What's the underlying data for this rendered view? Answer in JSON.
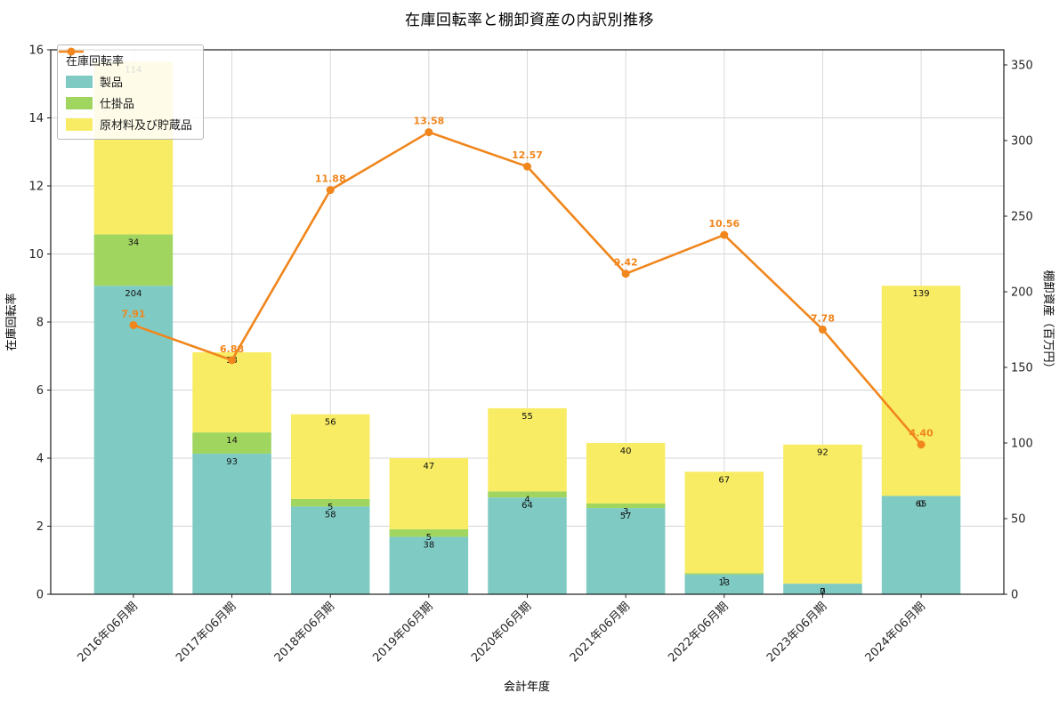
{
  "title": "在庫回転率と棚卸資産の内訳別推移",
  "chart_data": {
    "type": "bar",
    "subtype": "stacked-bar-with-line",
    "title": "在庫回転率と棚卸資産の内訳別推移",
    "xlabel": "会計年度",
    "ylabel_left": "在庫回転率",
    "ylabel_right": "棚卸資産（百万円）",
    "categories": [
      "2016年06月期",
      "2017年06月期",
      "2018年06月期",
      "2019年06月期",
      "2020年06月期",
      "2021年06月期",
      "2022年06月期",
      "2023年06月期",
      "2024年06月期"
    ],
    "series": [
      {
        "name": "製品",
        "color": "#7fcbc4",
        "values": [
          204,
          93,
          58,
          38,
          64,
          57,
          13,
          7,
          65
        ]
      },
      {
        "name": "仕掛品",
        "color": "#a0d55f",
        "values": [
          34,
          14,
          5,
          5,
          4,
          3,
          1,
          0,
          0
        ]
      },
      {
        "name": "原材料及び貯蔵品",
        "color": "#f8ec64",
        "values": [
          114,
          53,
          56,
          47,
          55,
          40,
          67,
          92,
          139
        ]
      }
    ],
    "line": {
      "name": "在庫回転率",
      "color": "#f0861c",
      "values": [
        7.91,
        6.88,
        11.88,
        13.58,
        12.57,
        9.42,
        10.56,
        7.78,
        4.4
      ]
    },
    "left_axis": {
      "min": 0,
      "max": 16,
      "step": 2
    },
    "right_axis": {
      "min": 0,
      "max": 360,
      "ticks": [
        0,
        50,
        100,
        150,
        200,
        250,
        300,
        350
      ]
    },
    "grid": true,
    "legend_position": "upper-left",
    "legend_entries": [
      "在庫回転率",
      "製品",
      "仕掛品",
      "原材料及び貯蔵品"
    ]
  }
}
